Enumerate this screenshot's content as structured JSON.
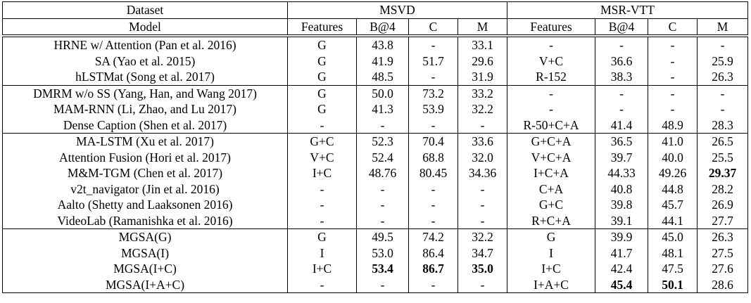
{
  "header": {
    "row1": [
      "Dataset",
      "MSVD",
      "MSR-VTT"
    ],
    "row2": [
      "Model",
      "Features",
      "B@4",
      "C",
      "M",
      "Features",
      "B@4",
      "C",
      "M"
    ]
  },
  "groups": [
    [
      [
        "HRNE w/ Attention (Pan et al. 2016)",
        "G",
        "43.8",
        "-",
        "33.1",
        "-",
        "-",
        "-",
        "-"
      ],
      [
        "SA (Yao et al. 2015)",
        "G",
        "41.9",
        "51.7",
        "29.6",
        "V+C",
        "36.6",
        "-",
        "25.9"
      ],
      [
        "hLSTMat (Song et al. 2017)",
        "G",
        "48.5",
        "-",
        "31.9",
        "R-152",
        "38.3",
        "-",
        "26.3"
      ]
    ],
    [
      [
        "DMRM w/o SS (Yang, Han, and Wang 2017)",
        "G",
        "50.0",
        "73.2",
        "33.2",
        "-",
        "-",
        "-",
        "-"
      ],
      [
        "MAM-RNN (Li, Zhao, and Lu 2017)",
        "G",
        "41.3",
        "53.9",
        "32.2",
        "-",
        "-",
        "-",
        "-"
      ],
      [
        "Dense Caption (Shen et al. 2017)",
        "-",
        "-",
        "-",
        "-",
        "R-50+C+A",
        "41.4",
        "48.9",
        "28.3"
      ]
    ],
    [
      [
        "MA-LSTM (Xu et al. 2017)",
        "G+C",
        "52.3",
        "70.4",
        "33.6",
        "G+C+A",
        "36.5",
        "41.0",
        "26.5"
      ],
      [
        "Attention Fusion (Hori et al. 2017)",
        "V+C",
        "52.4",
        "68.8",
        "32.0",
        "V+C+A",
        "39.7",
        "40.0",
        "25.5"
      ],
      [
        "M&M-TGM (Chen et al. 2017)",
        "I+C",
        "48.76",
        "80.45",
        "34.36",
        "I+C+A",
        "44.33",
        "49.26",
        {
          "text": "29.37",
          "bold": true
        }
      ],
      [
        "v2t_navigator (Jin et al. 2016)",
        "-",
        "-",
        "-",
        "-",
        "C+A",
        "40.8",
        "44.8",
        "28.2"
      ],
      [
        "Aalto (Shetty and Laaksonen 2016)",
        "-",
        "-",
        "-",
        "-",
        "G+C",
        "39.8",
        "45.7",
        "26.9"
      ],
      [
        "VideoLab (Ramanishka et al. 2016)",
        "-",
        "-",
        "-",
        "-",
        "R+C+A",
        "39.1",
        "44.1",
        "27.7"
      ]
    ],
    [
      [
        "MGSA(G)",
        "G",
        "49.5",
        "74.2",
        "32.2",
        "G",
        "39.9",
        "45.0",
        "26.3"
      ],
      [
        "MGSA(I)",
        "I",
        "53.0",
        "86.4",
        "34.7",
        "I",
        "41.7",
        "48.1",
        "27.5"
      ],
      [
        "MGSA(I+C)",
        "I+C",
        {
          "text": "53.4",
          "bold": true
        },
        {
          "text": "86.7",
          "bold": true
        },
        {
          "text": "35.0",
          "bold": true
        },
        "I+C",
        "42.4",
        "47.5",
        "27.6"
      ],
      [
        "MGSA(I+A+C)",
        "-",
        "-",
        "-",
        "-",
        "I+A+C",
        {
          "text": "45.4",
          "bold": true
        },
        {
          "text": "50.1",
          "bold": true
        },
        "28.6"
      ]
    ]
  ]
}
